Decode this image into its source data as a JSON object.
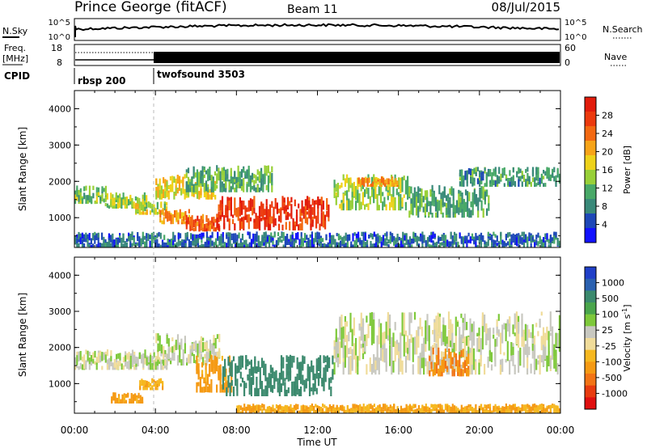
{
  "header": {
    "title": "Prince George (fitACF)",
    "beam": "Beam 11",
    "date": "08/Jul/2015"
  },
  "noise_panel": {
    "left_label": "N.Sky",
    "right_label": "N.Search",
    "left_ticks": [
      "10^5",
      "10^0"
    ],
    "right_ticks": [
      "10^5",
      "10^0"
    ]
  },
  "freq_panel": {
    "left_label_1": "Freq.",
    "left_label_2": "[MHz]",
    "right_label": "Nave",
    "left_ticks": [
      "18",
      "8"
    ],
    "right_ticks": [
      "60",
      "0"
    ]
  },
  "cpid": {
    "label": "CPID",
    "modes": [
      {
        "name": "rbsp 200",
        "start_hour": 0
      },
      {
        "name": "twofsound 3503",
        "start_hour": 4
      }
    ]
  },
  "x_axis": {
    "label": "Time UT",
    "tick_labels": [
      "00:00",
      "04:00",
      "08:00",
      "12:00",
      "16:00",
      "20:00",
      "00:00"
    ]
  },
  "chart_data": [
    {
      "type": "heatmap",
      "name": "power",
      "ylabel": "Slant Range [km]",
      "xlim_hours": [
        0,
        24
      ],
      "ylim_km": [
        180,
        4500
      ],
      "y_ticks": [
        "1000",
        "2000",
        "3000",
        "4000"
      ],
      "colorbar": {
        "label": "Power [dB]",
        "ticks": [
          "4",
          "8",
          "12",
          "16",
          "20",
          "24",
          "28"
        ],
        "colors": [
          "#1212ff",
          "#1e48b8",
          "#3a8a7a",
          "#49a968",
          "#98d038",
          "#eed21a",
          "#f7a418",
          "#f36912",
          "#ec3a0e",
          "#e21c0c"
        ]
      },
      "regions": [
        {
          "t": [
            0.0,
            1.6
          ],
          "r": [
            1380,
            1900
          ],
          "value": 14
        },
        {
          "t": [
            1.5,
            3.6
          ],
          "r": [
            1250,
            1700
          ],
          "value": 16
        },
        {
          "t": [
            3.0,
            4.6
          ],
          "r": [
            1080,
            1450
          ],
          "value": 17
        },
        {
          "t": [
            4.2,
            5.8
          ],
          "r": [
            820,
            1250
          ],
          "value": 22
        },
        {
          "t": [
            5.5,
            7.2
          ],
          "r": [
            620,
            1100
          ],
          "value": 26
        },
        {
          "t": [
            7.0,
            12.6
          ],
          "r": [
            650,
            1600
          ],
          "value": 28
        },
        {
          "t": [
            4.0,
            7.0
          ],
          "r": [
            1500,
            2200
          ],
          "value": 18
        },
        {
          "t": [
            5.5,
            9.8
          ],
          "r": [
            1700,
            2450
          ],
          "value": 12
        },
        {
          "t": [
            12.8,
            16.5
          ],
          "r": [
            1200,
            2200
          ],
          "value": 15
        },
        {
          "t": [
            14.0,
            16.0
          ],
          "r": [
            1850,
            2150
          ],
          "value": 22
        },
        {
          "t": [
            16.5,
            20.5
          ],
          "r": [
            1000,
            1900
          ],
          "value": 12
        },
        {
          "t": [
            19.0,
            24.0
          ],
          "r": [
            1850,
            2400
          ],
          "value": 11
        },
        {
          "t": [
            0.0,
            24.0
          ],
          "r": [
            180,
            620
          ],
          "value": 8
        }
      ]
    },
    {
      "type": "heatmap",
      "name": "velocity",
      "ylabel": "Slant Range [km]",
      "xlim_hours": [
        0,
        24
      ],
      "ylim_km": [
        180,
        4500
      ],
      "y_ticks": [
        "1000",
        "2000",
        "3000",
        "4000"
      ],
      "colorbar": {
        "label": "Velocity [m s^-1]",
        "ticks": [
          "1000",
          "500",
          "100",
          "25",
          "-25",
          "-100",
          "-500",
          "-1000"
        ],
        "colors": [
          "#2040c8",
          "#2b61b0",
          "#3c8a6e",
          "#4aa64c",
          "#7ec93b",
          "#c8c8c0",
          "#f0dc9a",
          "#f6b820",
          "#f59a14",
          "#f27416",
          "#e83c10",
          "#e01010"
        ]
      },
      "regions": [
        {
          "t": [
            0.0,
            4.6
          ],
          "r": [
            1380,
            1950
          ],
          "value": 0
        },
        {
          "t": [
            1.8,
            3.4
          ],
          "r": [
            450,
            760
          ],
          "value": -200
        },
        {
          "t": [
            3.2,
            4.4
          ],
          "r": [
            820,
            1150
          ],
          "value": -120
        },
        {
          "t": [
            4.0,
            7.2
          ],
          "r": [
            1500,
            2400
          ],
          "value": 0
        },
        {
          "t": [
            6.0,
            7.8
          ],
          "r": [
            750,
            1800
          ],
          "value": -200
        },
        {
          "t": [
            7.3,
            12.8
          ],
          "r": [
            650,
            1800
          ],
          "value": 300
        },
        {
          "t": [
            12.8,
            24.0
          ],
          "r": [
            1250,
            3000
          ],
          "value": 0
        },
        {
          "t": [
            17.5,
            19.5
          ],
          "r": [
            1200,
            2000
          ],
          "value": -300
        },
        {
          "t": [
            8.0,
            24.0
          ],
          "r": [
            180,
            450
          ],
          "value": -150
        }
      ]
    }
  ]
}
